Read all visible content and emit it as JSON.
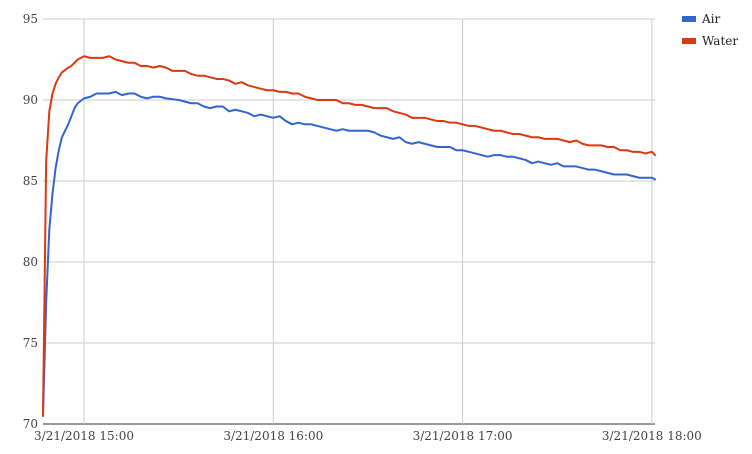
{
  "chart_data": {
    "type": "line",
    "title": "",
    "xlabel": "",
    "ylabel": "",
    "ylim": [
      70,
      95
    ],
    "y_ticks": [
      "70",
      "75",
      "80",
      "85",
      "90",
      "95"
    ],
    "x_ticks": [
      "3/21/2018 15:00",
      "3/21/2018 16:00",
      "3/21/2018 17:00",
      "3/21/2018 18:00"
    ],
    "x_range": [
      "3/21/2018 14:47",
      "3/21/2018 18:01"
    ],
    "grid": true,
    "legend_position": "top-right",
    "series": [
      {
        "name": "Air",
        "color": "#3366cc",
        "points": [
          [
            "14:47",
            70.5
          ],
          [
            "14:48",
            77.5
          ],
          [
            "14:49",
            82.0
          ],
          [
            "14:50",
            84.2
          ],
          [
            "14:51",
            85.8
          ],
          [
            "14:52",
            86.9
          ],
          [
            "14:53",
            87.7
          ],
          [
            "14:55",
            88.5
          ],
          [
            "14:56",
            89.0
          ],
          [
            "14:57",
            89.5
          ],
          [
            "14:58",
            89.8
          ],
          [
            "15:00",
            90.1
          ],
          [
            "15:02",
            90.2
          ],
          [
            "15:04",
            90.4
          ],
          [
            "15:08",
            90.4
          ],
          [
            "15:10",
            90.5
          ],
          [
            "15:12",
            90.3
          ],
          [
            "15:14",
            90.4
          ],
          [
            "15:16",
            90.4
          ],
          [
            "15:18",
            90.2
          ],
          [
            "15:20",
            90.1
          ],
          [
            "15:22",
            90.2
          ],
          [
            "15:24",
            90.2
          ],
          [
            "15:26",
            90.1
          ],
          [
            "15:30",
            90.0
          ],
          [
            "15:32",
            89.9
          ],
          [
            "15:34",
            89.8
          ],
          [
            "15:36",
            89.8
          ],
          [
            "15:38",
            89.6
          ],
          [
            "15:40",
            89.5
          ],
          [
            "15:42",
            89.6
          ],
          [
            "15:44",
            89.6
          ],
          [
            "15:46",
            89.3
          ],
          [
            "15:48",
            89.4
          ],
          [
            "15:50",
            89.3
          ],
          [
            "15:52",
            89.2
          ],
          [
            "15:54",
            89.0
          ],
          [
            "15:56",
            89.1
          ],
          [
            "15:58",
            89.0
          ],
          [
            "16:00",
            88.9
          ],
          [
            "16:02",
            89.0
          ],
          [
            "16:04",
            88.7
          ],
          [
            "16:06",
            88.5
          ],
          [
            "16:08",
            88.6
          ],
          [
            "16:10",
            88.5
          ],
          [
            "16:12",
            88.5
          ],
          [
            "16:14",
            88.4
          ],
          [
            "16:16",
            88.3
          ],
          [
            "16:18",
            88.2
          ],
          [
            "16:20",
            88.1
          ],
          [
            "16:22",
            88.2
          ],
          [
            "16:24",
            88.1
          ],
          [
            "16:30",
            88.1
          ],
          [
            "16:32",
            88.0
          ],
          [
            "16:34",
            87.8
          ],
          [
            "16:36",
            87.7
          ],
          [
            "16:38",
            87.6
          ],
          [
            "16:40",
            87.7
          ],
          [
            "16:42",
            87.4
          ],
          [
            "16:44",
            87.3
          ],
          [
            "16:46",
            87.4
          ],
          [
            "16:48",
            87.3
          ],
          [
            "16:50",
            87.2
          ],
          [
            "16:52",
            87.1
          ],
          [
            "16:54",
            87.1
          ],
          [
            "16:56",
            87.1
          ],
          [
            "16:58",
            86.9
          ],
          [
            "17:00",
            86.9
          ],
          [
            "17:02",
            86.8
          ],
          [
            "17:04",
            86.7
          ],
          [
            "17:06",
            86.6
          ],
          [
            "17:08",
            86.5
          ],
          [
            "17:10",
            86.6
          ],
          [
            "17:12",
            86.6
          ],
          [
            "17:14",
            86.5
          ],
          [
            "17:16",
            86.5
          ],
          [
            "17:18",
            86.4
          ],
          [
            "17:20",
            86.3
          ],
          [
            "17:22",
            86.1
          ],
          [
            "17:24",
            86.2
          ],
          [
            "17:26",
            86.1
          ],
          [
            "17:28",
            86.0
          ],
          [
            "17:30",
            86.1
          ],
          [
            "17:32",
            85.9
          ],
          [
            "17:34",
            85.9
          ],
          [
            "17:36",
            85.9
          ],
          [
            "17:38",
            85.8
          ],
          [
            "17:40",
            85.7
          ],
          [
            "17:42",
            85.7
          ],
          [
            "17:44",
            85.6
          ],
          [
            "17:46",
            85.5
          ],
          [
            "17:48",
            85.4
          ],
          [
            "17:50",
            85.4
          ],
          [
            "17:52",
            85.4
          ],
          [
            "17:54",
            85.3
          ],
          [
            "17:56",
            85.2
          ],
          [
            "17:58",
            85.2
          ],
          [
            "18:00",
            85.2
          ],
          [
            "18:01",
            85.1
          ]
        ]
      },
      {
        "name": "Water",
        "color": "#dc3912",
        "points": [
          [
            "14:47",
            70.5
          ],
          [
            "14:48",
            86.2
          ],
          [
            "14:49",
            89.3
          ],
          [
            "14:50",
            90.4
          ],
          [
            "14:51",
            91.0
          ],
          [
            "14:52",
            91.4
          ],
          [
            "14:53",
            91.7
          ],
          [
            "14:55",
            92.0
          ],
          [
            "14:56",
            92.1
          ],
          [
            "14:57",
            92.3
          ],
          [
            "14:58",
            92.5
          ],
          [
            "15:00",
            92.7
          ],
          [
            "15:02",
            92.6
          ],
          [
            "15:04",
            92.6
          ],
          [
            "15:06",
            92.6
          ],
          [
            "15:08",
            92.7
          ],
          [
            "15:10",
            92.5
          ],
          [
            "15:12",
            92.4
          ],
          [
            "15:14",
            92.3
          ],
          [
            "15:16",
            92.3
          ],
          [
            "15:18",
            92.1
          ],
          [
            "15:20",
            92.1
          ],
          [
            "15:22",
            92.0
          ],
          [
            "15:24",
            92.1
          ],
          [
            "15:26",
            92.0
          ],
          [
            "15:28",
            91.8
          ],
          [
            "15:30",
            91.8
          ],
          [
            "15:32",
            91.8
          ],
          [
            "15:34",
            91.6
          ],
          [
            "15:36",
            91.5
          ],
          [
            "15:38",
            91.5
          ],
          [
            "15:40",
            91.4
          ],
          [
            "15:42",
            91.3
          ],
          [
            "15:44",
            91.3
          ],
          [
            "15:46",
            91.2
          ],
          [
            "15:48",
            91.0
          ],
          [
            "15:50",
            91.1
          ],
          [
            "15:52",
            90.9
          ],
          [
            "15:54",
            90.8
          ],
          [
            "15:56",
            90.7
          ],
          [
            "15:58",
            90.6
          ],
          [
            "16:00",
            90.6
          ],
          [
            "16:02",
            90.5
          ],
          [
            "16:04",
            90.5
          ],
          [
            "16:06",
            90.4
          ],
          [
            "16:08",
            90.4
          ],
          [
            "16:10",
            90.2
          ],
          [
            "16:12",
            90.1
          ],
          [
            "16:14",
            90.0
          ],
          [
            "16:16",
            90.0
          ],
          [
            "16:18",
            90.0
          ],
          [
            "16:20",
            90.0
          ],
          [
            "16:22",
            89.8
          ],
          [
            "16:24",
            89.8
          ],
          [
            "16:26",
            89.7
          ],
          [
            "16:28",
            89.7
          ],
          [
            "16:30",
            89.6
          ],
          [
            "16:32",
            89.5
          ],
          [
            "16:34",
            89.5
          ],
          [
            "16:36",
            89.5
          ],
          [
            "16:38",
            89.3
          ],
          [
            "16:40",
            89.2
          ],
          [
            "16:42",
            89.1
          ],
          [
            "16:44",
            88.9
          ],
          [
            "16:46",
            88.9
          ],
          [
            "16:48",
            88.9
          ],
          [
            "16:50",
            88.8
          ],
          [
            "16:52",
            88.7
          ],
          [
            "16:54",
            88.7
          ],
          [
            "16:56",
            88.6
          ],
          [
            "16:58",
            88.6
          ],
          [
            "17:00",
            88.5
          ],
          [
            "17:02",
            88.4
          ],
          [
            "17:04",
            88.4
          ],
          [
            "17:06",
            88.3
          ],
          [
            "17:08",
            88.2
          ],
          [
            "17:10",
            88.1
          ],
          [
            "17:12",
            88.1
          ],
          [
            "17:14",
            88.0
          ],
          [
            "17:16",
            87.9
          ],
          [
            "17:18",
            87.9
          ],
          [
            "17:20",
            87.8
          ],
          [
            "17:22",
            87.7
          ],
          [
            "17:24",
            87.7
          ],
          [
            "17:26",
            87.6
          ],
          [
            "17:28",
            87.6
          ],
          [
            "17:30",
            87.6
          ],
          [
            "17:32",
            87.5
          ],
          [
            "17:34",
            87.4
          ],
          [
            "17:36",
            87.5
          ],
          [
            "17:38",
            87.3
          ],
          [
            "17:40",
            87.2
          ],
          [
            "17:42",
            87.2
          ],
          [
            "17:44",
            87.2
          ],
          [
            "17:46",
            87.1
          ],
          [
            "17:48",
            87.1
          ],
          [
            "17:50",
            86.9
          ],
          [
            "17:52",
            86.9
          ],
          [
            "17:54",
            86.8
          ],
          [
            "17:56",
            86.8
          ],
          [
            "17:58",
            86.7
          ],
          [
            "18:00",
            86.8
          ],
          [
            "18:01",
            86.6
          ]
        ]
      }
    ]
  }
}
